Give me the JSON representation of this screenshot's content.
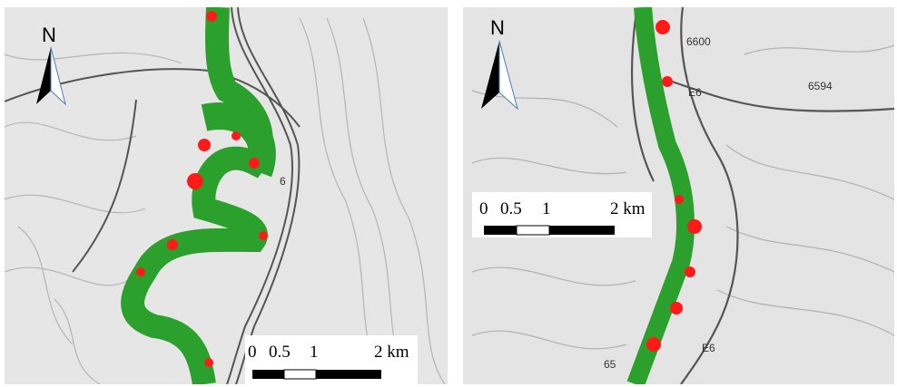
{
  "panels": [
    {
      "north": "N",
      "scale_labels": [
        "0",
        "0.5",
        "1",
        "2 km"
      ],
      "road_labels": [
        "6"
      ]
    },
    {
      "north": "N",
      "scale_labels": [
        "0",
        "0.5",
        "1",
        "2 km"
      ],
      "road_labels": [
        "6600",
        "6594",
        "E6",
        "E6",
        "65"
      ]
    }
  ]
}
